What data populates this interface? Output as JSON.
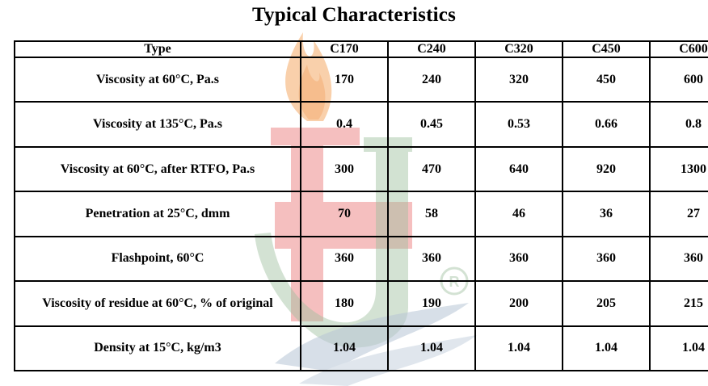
{
  "title": "Typical Characteristics",
  "table": {
    "header": {
      "type_label": "Type",
      "grades": [
        "C170",
        "C240",
        "C320",
        "C450",
        "C600"
      ]
    },
    "rows": [
      {
        "label": "Viscosity at 60°C, Pa.s",
        "values": [
          "170",
          "240",
          "320",
          "450",
          "600"
        ]
      },
      {
        "label": "Viscosity at 135°C, Pa.s",
        "values": [
          "0.4",
          "0.45",
          "0.53",
          "0.66",
          "0.8"
        ]
      },
      {
        "label": "Viscosity at 60°C, after RTFO, Pa.s",
        "values": [
          "300",
          "470",
          "640",
          "920",
          "1300"
        ]
      },
      {
        "label": "Penetration at 25°C, dmm",
        "values": [
          "70",
          "58",
          "46",
          "36",
          "27"
        ]
      },
      {
        "label": "Flashpoint, 60°C",
        "values": [
          "360",
          "360",
          "360",
          "360",
          "360"
        ]
      },
      {
        "label": "Viscosity of residue at 60°C, % of original",
        "values": [
          "180",
          "190",
          "200",
          "205",
          "215"
        ]
      },
      {
        "label": "Density at 15°C, kg/m3",
        "values": [
          "1.04",
          "1.04",
          "1.04",
          "1.04",
          "1.04"
        ]
      }
    ]
  },
  "watermark": {
    "icon": "torch-hj-logo-icon",
    "registered_mark": "®",
    "colors": {
      "flame": "#f6b77a",
      "letter_h": "#f0a0a0",
      "letter_j": "#b9cfb9",
      "wave": "#b8c6d6"
    }
  }
}
